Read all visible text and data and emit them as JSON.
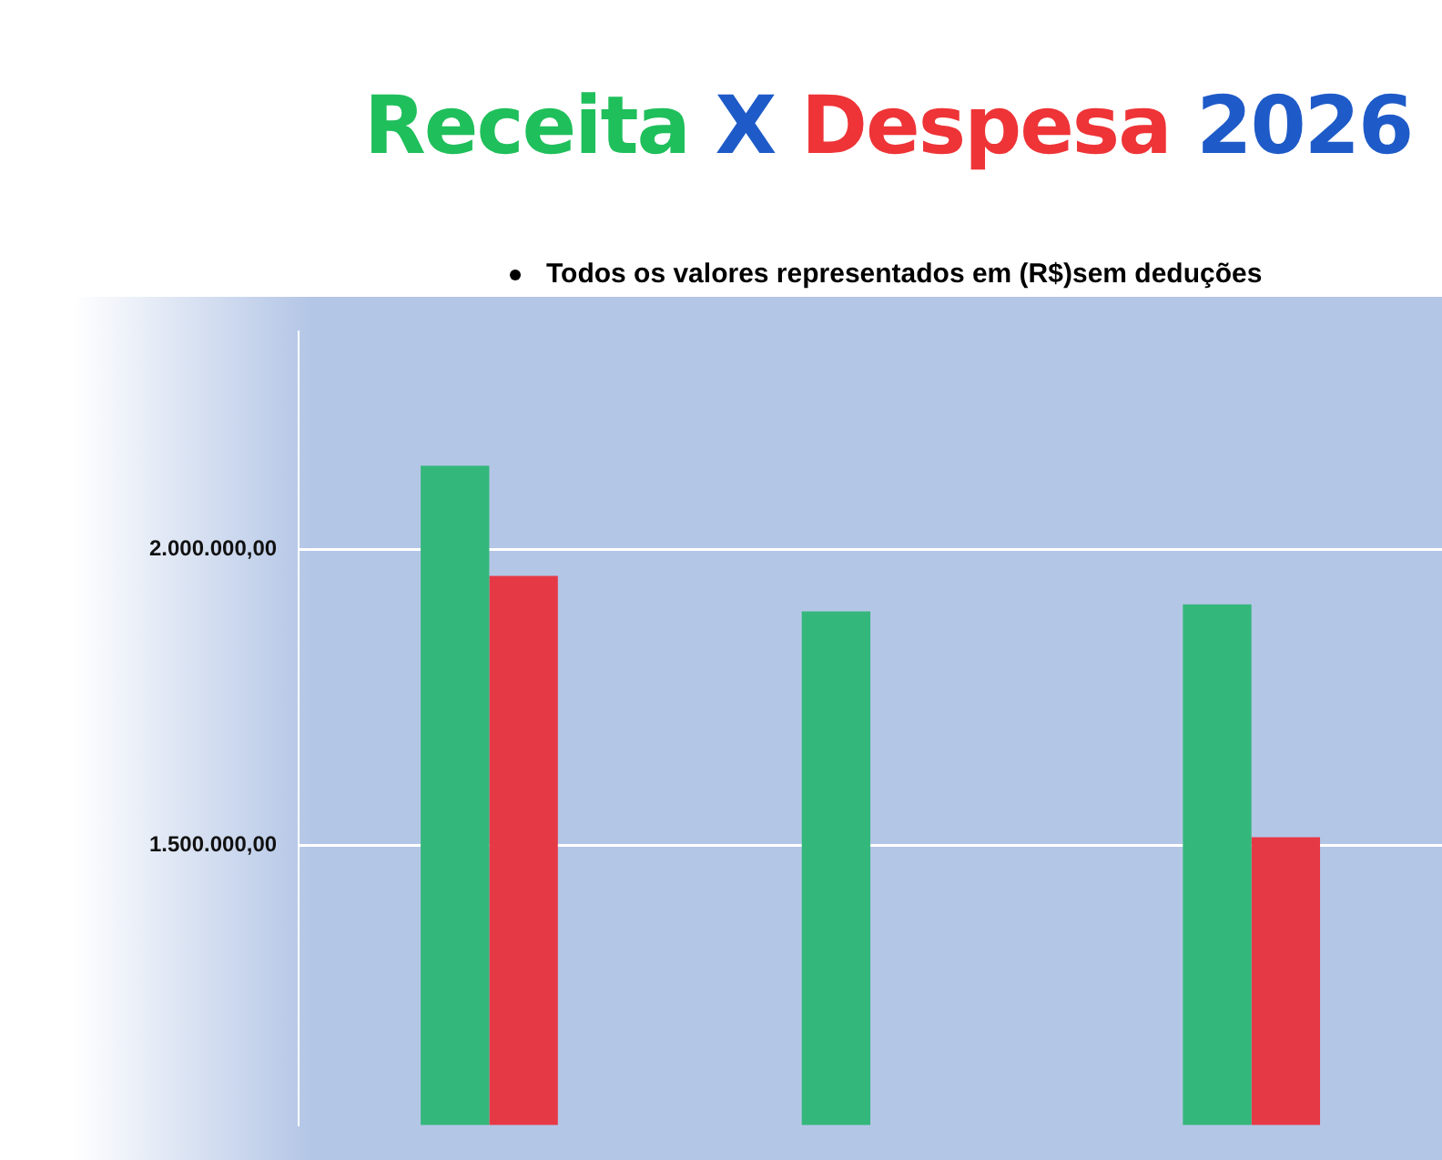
{
  "chart_data": {
    "type": "bar",
    "title": "Receita X Despesa 2026",
    "annotations": [
      "Todos os valores representados em  (R$)sem deduções"
    ],
    "categories": [
      null,
      null,
      null
    ],
    "series": [
      {
        "color": "#34b77b",
        "values": [
          2141000,
          1895000,
          1907000
        ]
      },
      {
        "color": "#e63946",
        "values": [
          1955000,
          null,
          1514000
        ]
      }
    ],
    "ylim": [
      1028000,
      2367000
    ],
    "yticks": [
      {
        "value": 1500000,
        "label": "1.500.000,00"
      },
      {
        "value": 2000000,
        "label": "2.000.000,00"
      }
    ],
    "grid": "y",
    "legend": false,
    "tick_labels": "y"
  }
}
